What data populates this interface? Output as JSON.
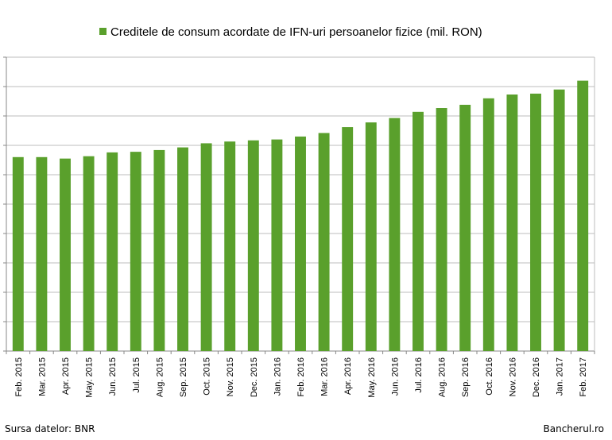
{
  "chart_data": {
    "type": "bar",
    "title": "",
    "xlabel": "",
    "ylabel": "",
    "ylim": [
      0,
      10
    ],
    "grid": true,
    "legend_position": "top",
    "y_tick_labels_visible": false,
    "bar_color": "#5aa02c",
    "series": [
      {
        "name": "Creditele de consum acordate de IFN-uri persoanelor fizice (mil. RON)",
        "values": [
          6.6,
          6.6,
          6.55,
          6.63,
          6.76,
          6.78,
          6.84,
          6.93,
          7.07,
          7.13,
          7.17,
          7.2,
          7.3,
          7.42,
          7.62,
          7.78,
          7.93,
          8.14,
          8.27,
          8.38,
          8.6,
          8.73,
          8.76,
          8.9,
          9.2
        ]
      }
    ],
    "categories": [
      "Feb. 2015",
      "Mar. 2015",
      "Apr. 2015",
      "May. 2015",
      "Jun. 2015",
      "Jul. 2015",
      "Aug. 2015",
      "Sep. 2015",
      "Oct. 2015",
      "Nov. 2015",
      "Dec. 2015",
      "Jan. 2016",
      "Feb. 2016",
      "Mar. 2016",
      "Apr. 2016",
      "May. 2016",
      "Jun. 2016",
      "Jul. 2016",
      "Aug. 2016",
      "Sep. 2016",
      "Oct. 2016",
      "Nov. 2016",
      "Dec. 2016",
      "Jan. 2017",
      "Feb. 2017"
    ]
  },
  "footer": {
    "source": "Sursa datelor: BNR",
    "brand": "Bancherul.ro"
  }
}
